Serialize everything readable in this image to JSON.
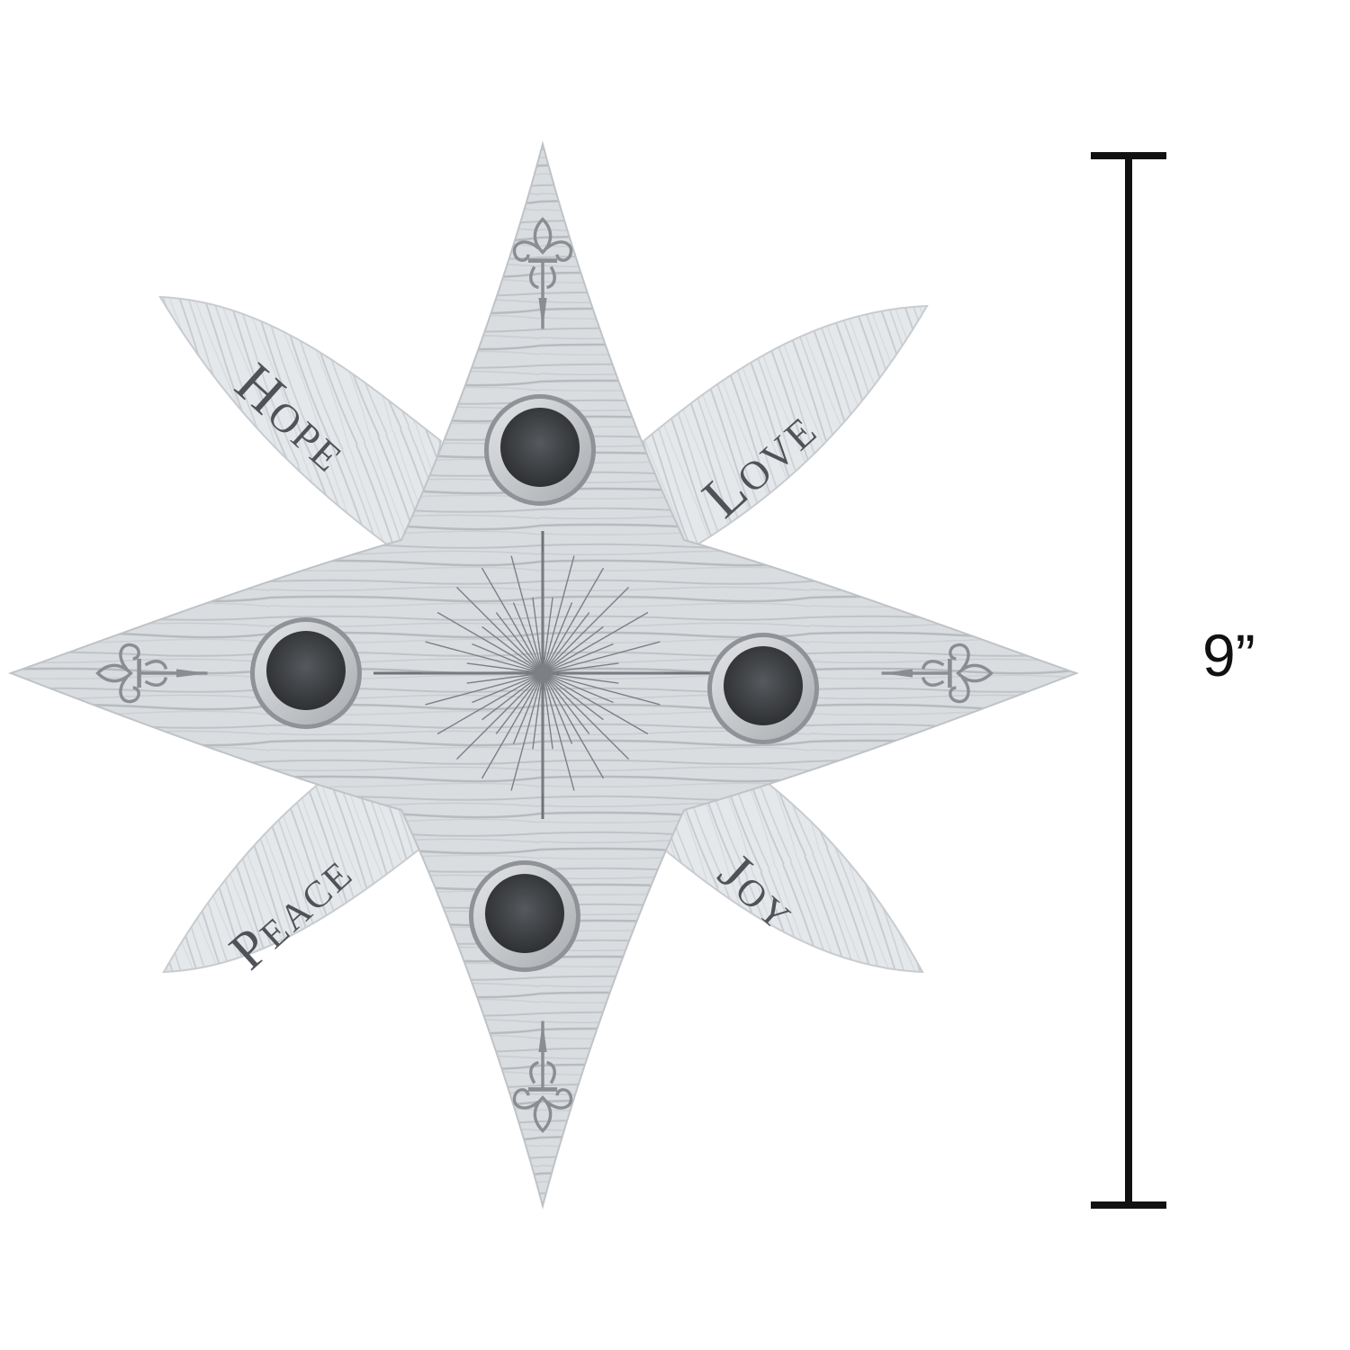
{
  "product": {
    "name": "eight-point star advent candle holder",
    "material": "whitewashed wood grain",
    "candle_cups": 4,
    "words": {
      "top_left": "Hope",
      "top_right": "Love",
      "bottom_left": "Peace",
      "bottom_right": "Joy"
    },
    "colors": {
      "wood_main": "#d9dcdf",
      "wood_light": "#e6e9eb",
      "wood_grain": "#b9bdc1",
      "cup_rim": "#c9cbcd",
      "cup_inner": "#3a3c3f",
      "text": "#4f5357"
    },
    "icons": [
      "fleur-de-lis-icon",
      "starburst-icon"
    ]
  },
  "dimension": {
    "label": "9”",
    "color": "#111111"
  }
}
